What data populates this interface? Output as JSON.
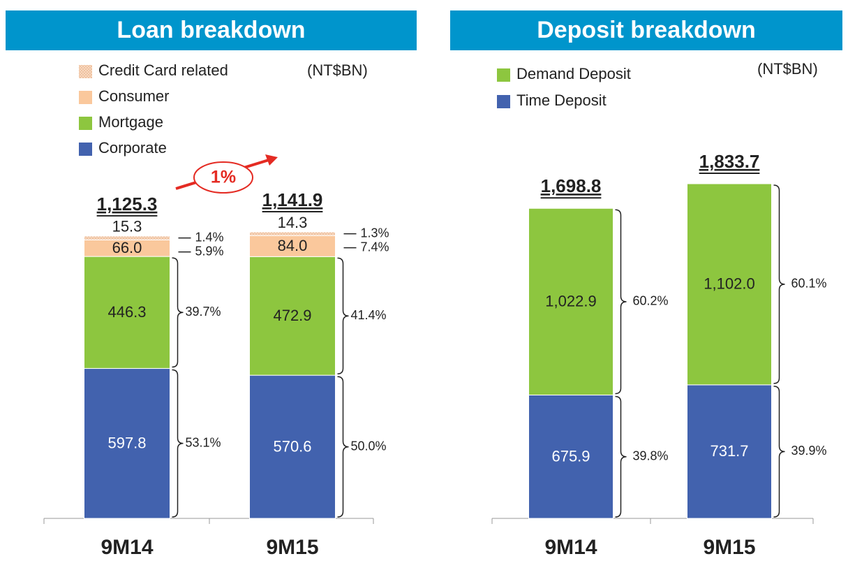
{
  "chart_data": [
    {
      "type": "stacked_bar",
      "title": "Loan breakdown",
      "unit": "(NT$BN)",
      "categories": [
        "9M14",
        "9M15"
      ],
      "totals": [
        1125.3,
        1141.9
      ],
      "total_labels": [
        "1,125.3",
        "1,141.9"
      ],
      "annotation": "1%",
      "series": [
        {
          "name": "Corporate",
          "color": "#4262ae",
          "label_color": "#ffffff",
          "values": [
            597.8,
            570.6
          ],
          "value_labels": [
            "597.8",
            "570.6"
          ],
          "shares": [
            53.1,
            50.0
          ],
          "share_labels": [
            "53.1%",
            "50.0%"
          ]
        },
        {
          "name": "Mortgage",
          "color": "#8dc63f",
          "label_color": "#222222",
          "values": [
            446.3,
            472.9
          ],
          "value_labels": [
            "446.3",
            "472.9"
          ],
          "shares": [
            39.7,
            41.4
          ],
          "share_labels": [
            "39.7%",
            "41.4%"
          ]
        },
        {
          "name": "Consumer",
          "color": "#fac89c",
          "label_color": "#222222",
          "values": [
            66.0,
            84.0
          ],
          "value_labels": [
            "66.0",
            "84.0"
          ],
          "shares": [
            5.9,
            7.4
          ],
          "share_labels": [
            "5.9%",
            "7.4%"
          ]
        },
        {
          "name": "Credit Card related",
          "color": "#f8d9c0",
          "pattern": "dots",
          "label_color": "#222222",
          "values": [
            15.3,
            14.3
          ],
          "value_labels": [
            "15.3",
            "14.3"
          ],
          "shares": [
            1.4,
            1.3
          ],
          "share_labels": [
            "1.4%",
            "1.3%"
          ]
        }
      ]
    },
    {
      "type": "stacked_bar",
      "title": "Deposit breakdown",
      "unit": "(NT$BN)",
      "categories": [
        "9M14",
        "9M15"
      ],
      "totals": [
        1698.8,
        1833.7
      ],
      "total_labels": [
        "1,698.8",
        "1,833.7"
      ],
      "series": [
        {
          "name": "Time Deposit",
          "color": "#4262ae",
          "label_color": "#ffffff",
          "values": [
            675.9,
            731.7
          ],
          "value_labels": [
            "675.9",
            "731.7"
          ],
          "shares": [
            39.8,
            39.9
          ],
          "share_labels": [
            "39.8%",
            "39.9%"
          ]
        },
        {
          "name": "Demand Deposit",
          "color": "#8dc63f",
          "label_color": "#222222",
          "values": [
            1022.9,
            1102.0
          ],
          "value_labels": [
            "1,022.9",
            "1,102.0"
          ],
          "shares": [
            60.2,
            60.1
          ],
          "share_labels": [
            "60.2%",
            "60.1%"
          ]
        }
      ]
    }
  ]
}
